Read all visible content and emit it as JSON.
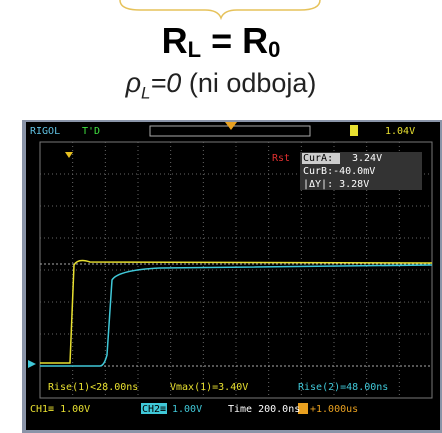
{
  "slide": {
    "formula": {
      "lhs": "R",
      "lhs_sub": "L",
      "op": "=",
      "rhs": "R",
      "rhs_sub": "0"
    },
    "subtitle": {
      "symbol": "ρ",
      "sub": "L",
      "eq": "=0",
      "note": "(ni odboja)"
    }
  },
  "scope": {
    "brand": "RIGOL",
    "status": "T'D",
    "trigger_level": "1.04V",
    "reset": "Rst",
    "cursors": {
      "a_label": "CurA:",
      "a_value": "3.24V",
      "b": "CurB:-40.0mV",
      "delta": "|ΔY|: 3.28V"
    },
    "measurements": [
      "Rise(1)<28.00ns",
      "Vmax(1)=3.40V",
      "Rise(2)=48.00ns"
    ],
    "channels": {
      "ch1": "CH1≡ 1.00V",
      "ch2": "CH2≡",
      "ch2_scale": "1.00V",
      "time": "Time 200.0ns",
      "offset": "+1.000us"
    }
  }
}
